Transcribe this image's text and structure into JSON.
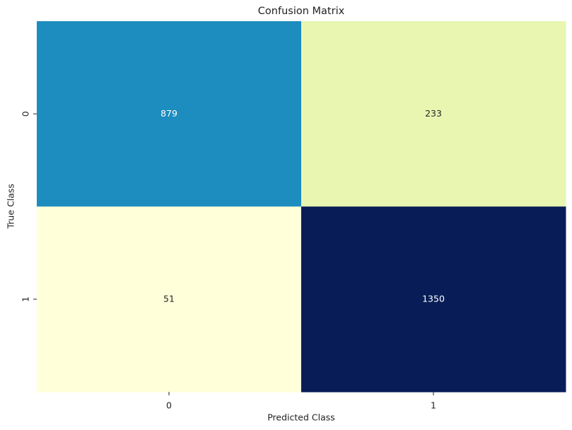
{
  "chart_data": {
    "type": "heatmap",
    "title": "Confusion Matrix",
    "x_label": "Predicted Class",
    "y_label": "True Class",
    "x_categories": [
      "0",
      "1"
    ],
    "y_categories": [
      "0",
      "1"
    ],
    "values": [
      [
        879,
        233
      ],
      [
        51,
        1350
      ]
    ],
    "colormap": "YlGnBu",
    "colorbar": false
  }
}
